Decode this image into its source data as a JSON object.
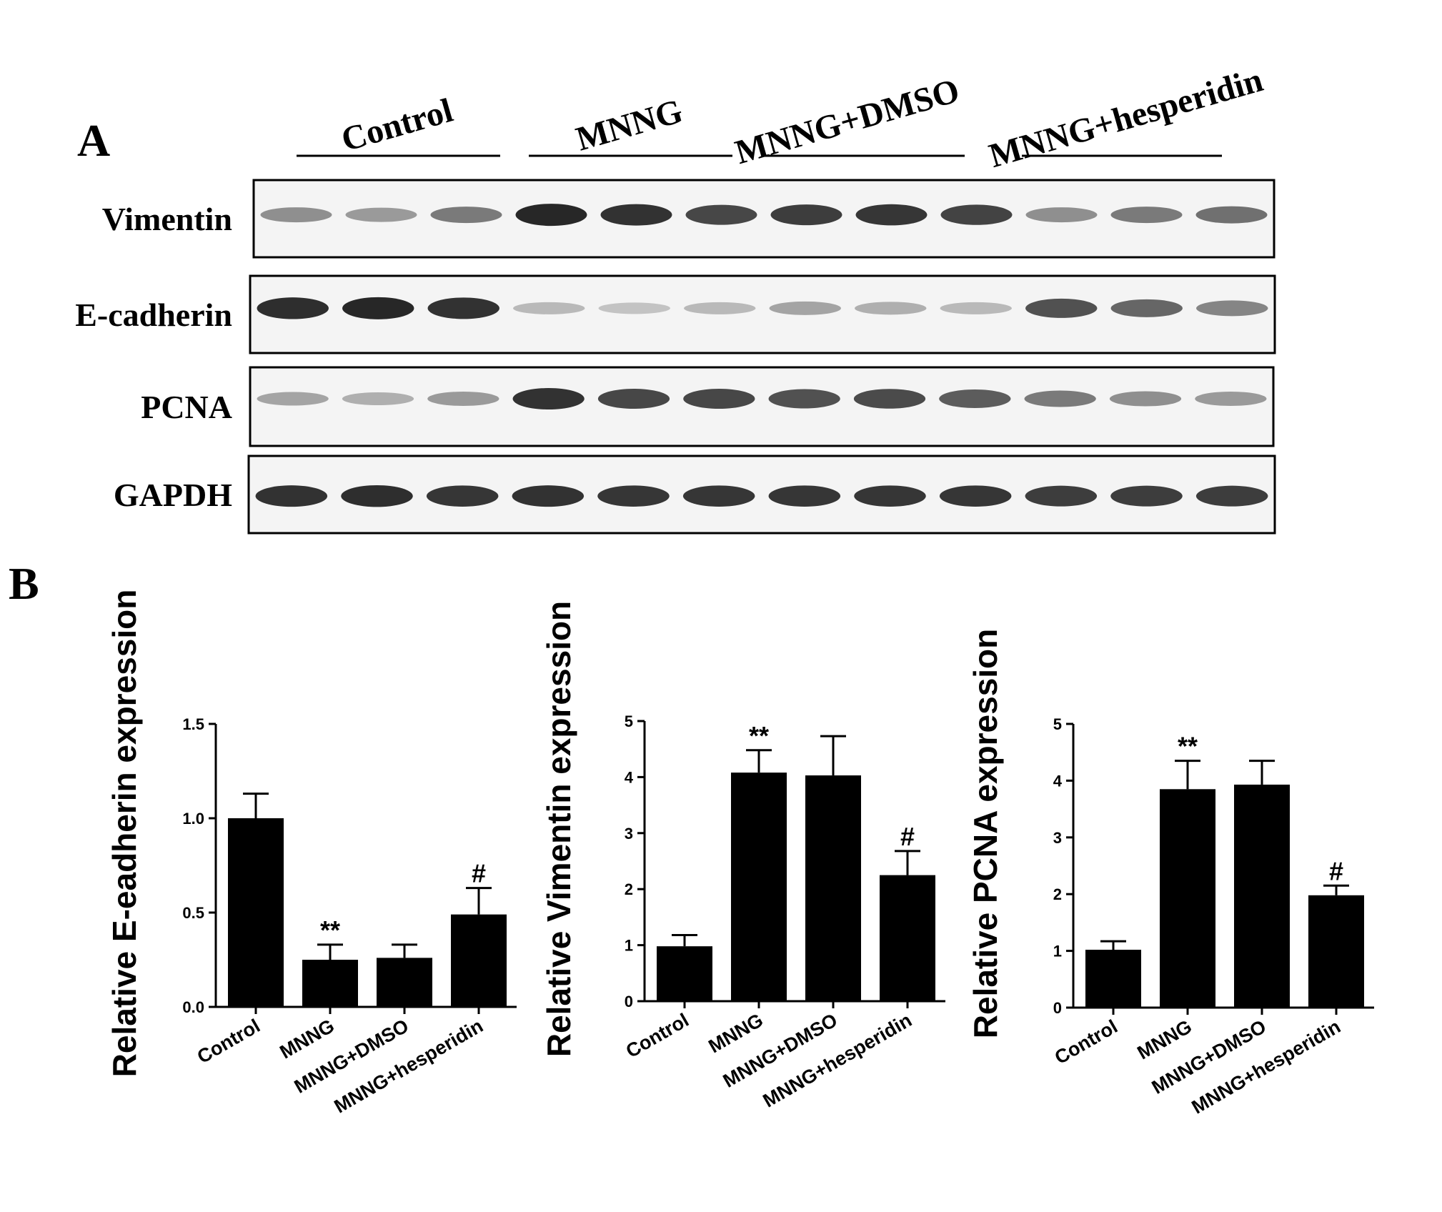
{
  "panel_labels": {
    "a": "A",
    "b": "B"
  },
  "blot": {
    "groups": [
      "Control",
      "MNNG",
      "MNNG+DMSO",
      "MNNG+hesperidin"
    ],
    "rows": [
      {
        "label": "Vimentin",
        "intensities": [
          0.45,
          0.4,
          0.55,
          0.95,
          0.9,
          0.8,
          0.85,
          0.88,
          0.82,
          0.45,
          0.55,
          0.6
        ]
      },
      {
        "label": "E-cadherin",
        "intensities": [
          0.92,
          0.95,
          0.9,
          0.25,
          0.2,
          0.25,
          0.35,
          0.3,
          0.25,
          0.75,
          0.65,
          0.5
        ]
      },
      {
        "label": "PCNA",
        "intensities": [
          0.35,
          0.3,
          0.4,
          0.9,
          0.8,
          0.8,
          0.75,
          0.78,
          0.7,
          0.55,
          0.45,
          0.4
        ]
      },
      {
        "label": "GAPDH",
        "intensities": [
          0.9,
          0.92,
          0.88,
          0.9,
          0.88,
          0.88,
          0.88,
          0.88,
          0.88,
          0.85,
          0.85,
          0.85
        ]
      }
    ]
  },
  "chart_data": [
    {
      "type": "bar",
      "categories": [
        "Control",
        "MNNG",
        "MNNG+DMSO",
        "MNNG+hesperidin"
      ],
      "values": [
        1.0,
        0.25,
        0.26,
        0.49
      ],
      "errors": [
        0.13,
        0.08,
        0.07,
        0.14
      ],
      "annotations": [
        "",
        "**",
        "",
        "#"
      ],
      "ylabel": "Relative E-eadherin expression",
      "xlabel": "",
      "ylim": [
        0,
        1.5
      ],
      "yticks": [
        "0.0",
        "0.5",
        "1.0",
        "1.5"
      ],
      "grid": false
    },
    {
      "type": "bar",
      "categories": [
        "Control",
        "MNNG",
        "MNNG+DMSO",
        "MNNG+hesperidin"
      ],
      "values": [
        0.98,
        4.08,
        4.03,
        2.25
      ],
      "errors": [
        0.2,
        0.4,
        0.7,
        0.43
      ],
      "annotations": [
        "",
        "**",
        "",
        "#"
      ],
      "ylabel": "Relative Vimentin  expression",
      "xlabel": "",
      "ylim": [
        0,
        5
      ],
      "yticks": [
        "0",
        "1",
        "2",
        "3",
        "4",
        "5"
      ],
      "grid": false
    },
    {
      "type": "bar",
      "categories": [
        "Control",
        "MNNG",
        "MNNG+DMSO",
        "MNNG+hesperidin"
      ],
      "values": [
        1.02,
        3.85,
        3.93,
        1.98
      ],
      "errors": [
        0.15,
        0.5,
        0.42,
        0.17
      ],
      "annotations": [
        "",
        "**",
        "",
        "#"
      ],
      "ylabel": "Relative PCNA expression",
      "xlabel": "",
      "ylim": [
        0,
        5
      ],
      "yticks": [
        "0",
        "1",
        "2",
        "3",
        "4",
        "5"
      ],
      "grid": false
    }
  ]
}
